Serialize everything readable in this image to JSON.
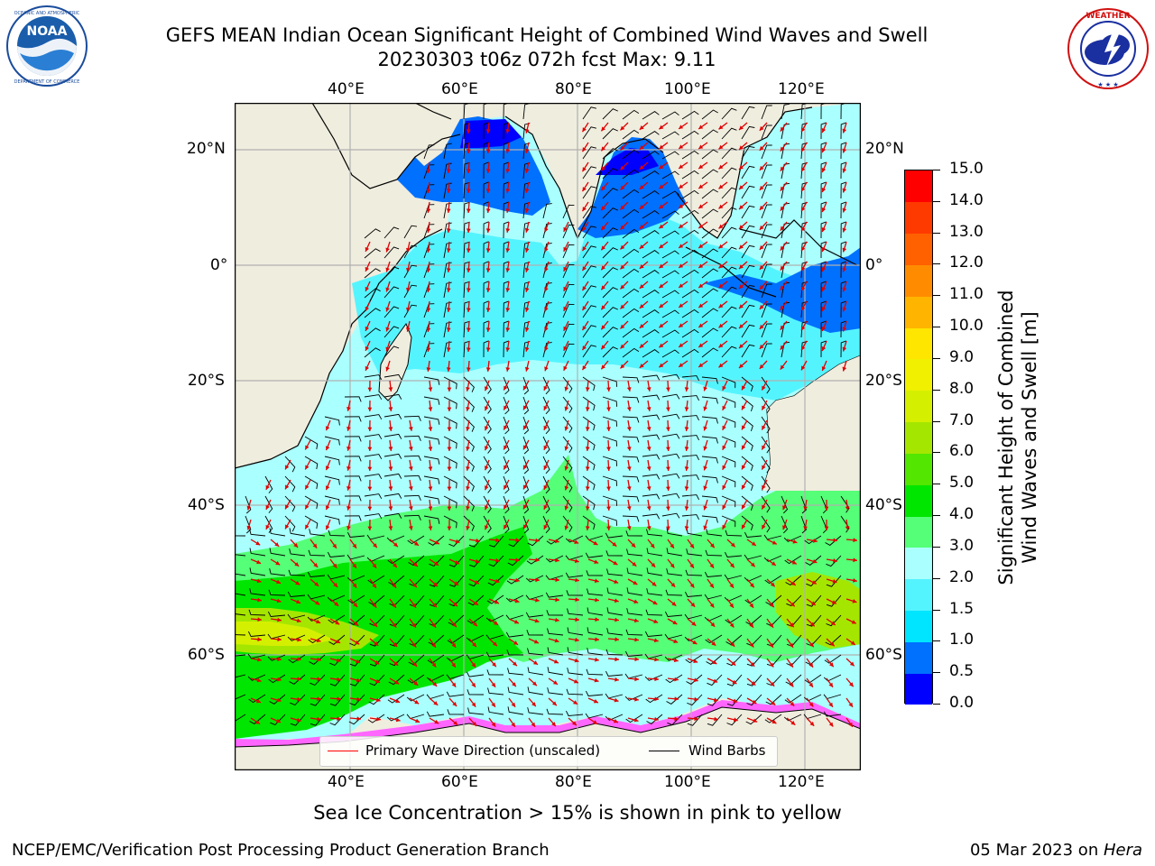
{
  "title": {
    "line1": "GEFS MEAN Indian Ocean Significant Height of Combined Wind Waves and Swell",
    "line2": "20230303 t06z 072h fcst   Max: 9.11"
  },
  "logos": {
    "left": "noaa-logo",
    "right": "nws-logo",
    "left_ring_text": "NATIONAL OCEANIC AND ATMOSPHERIC ADMINISTRATION · U.S. DEPARTMENT OF COMMERCE",
    "left_center_text": "NOAA",
    "right_ring_text": "NATIONAL WEATHER SERVICE"
  },
  "map": {
    "lon_labels": [
      "40°E",
      "60°E",
      "80°E",
      "100°E",
      "120°E"
    ],
    "lat_labels": [
      "20°N",
      "0°",
      "20°S",
      "40°S",
      "60°S"
    ],
    "legend": {
      "wave_direction": "Primary Wave Direction (unscaled)",
      "wind_barbs": "Wind Barbs",
      "wave_color": "#ff0000",
      "barb_color": "#000000"
    },
    "land_color": "#efedde",
    "grid_color": "#b0b0b0"
  },
  "colorbar": {
    "title_line1": "Significant Height of Combined",
    "title_line2": "Wind Waves and Swell [m]",
    "ticks": [
      "0.0",
      "0.5",
      "1.0",
      "1.5",
      "2.0",
      "3.0",
      "4.0",
      "5.0",
      "6.0",
      "7.0",
      "8.0",
      "9.0",
      "10.0",
      "11.0",
      "12.0",
      "13.0",
      "14.0",
      "15.0"
    ],
    "colors": [
      "#0000ff",
      "#0070ff",
      "#00e5ff",
      "#54f4ff",
      "#aaffff",
      "#55ff77",
      "#00e600",
      "#52e600",
      "#a5e600",
      "#d4f000",
      "#f0f000",
      "#ffe600",
      "#ffb400",
      "#ff8c00",
      "#ff6000",
      "#ff3a00",
      "#ff0000"
    ]
  },
  "footnote": "Sea Ice Concentration > 15% is shown in pink to yellow",
  "footer": {
    "left": "NCEP/EMC/Verification Post Processing Product Generation Branch",
    "right_prefix": "05 Mar 2023 on ",
    "right_host": "Hera"
  }
}
